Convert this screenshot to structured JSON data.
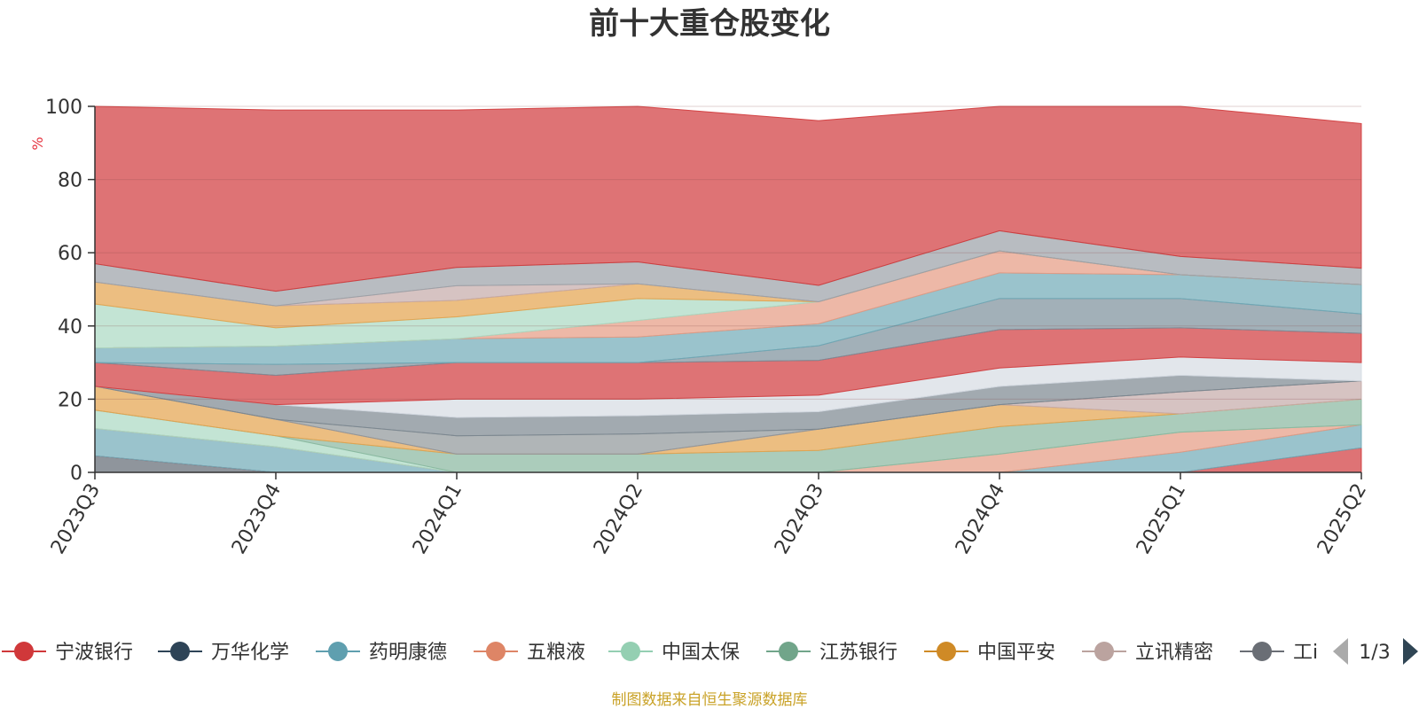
{
  "title": "前十大重仓股变化",
  "source": "制图数据来自恒生聚源数据库",
  "legend_page": "1/3",
  "chart_data": {
    "type": "area",
    "stacked": true,
    "unit": "%",
    "ylim": [
      0,
      100
    ],
    "yticks": [
      "0",
      "20",
      "40",
      "60",
      "80",
      "100"
    ],
    "grid": true,
    "categories": [
      "2023Q3",
      "2023Q4",
      "2024Q1",
      "2024Q2",
      "2024Q3",
      "2024Q4",
      "2025Q1",
      "2025Q2"
    ],
    "series_visible_in_legend": [
      "宁波银行",
      "万华化学",
      "药明康德",
      "五粮液",
      "中国太保",
      "江苏银行",
      "中国平安",
      "立讯精密",
      "工商银行"
    ],
    "series": [
      {
        "name": "",
        "color": "#5f6872",
        "values": [
          4.5,
          0,
          0,
          0,
          0,
          0,
          0,
          0
        ]
      },
      {
        "name": "宁波银行",
        "color": "#d0383a",
        "values": [
          0,
          0,
          0,
          0,
          0,
          0,
          0,
          6.7
        ]
      },
      {
        "name": "药明康德",
        "color": "#6fa9b6",
        "values": [
          7.5,
          7,
          0,
          0,
          0,
          0,
          5.5,
          6.3
        ]
      },
      {
        "name": "五粮液",
        "color": "#e69a82",
        "values": [
          0,
          0,
          0,
          0,
          0,
          5,
          5.5,
          0
        ]
      },
      {
        "name": "中国太保",
        "color": "#a9d8c2",
        "values": [
          5,
          3,
          0,
          0,
          0,
          0,
          0,
          0
        ]
      },
      {
        "name": "江苏银行",
        "color": "#88b79e",
        "values": [
          0,
          0,
          5,
          5,
          6,
          7.5,
          5,
          7
        ]
      },
      {
        "name": "中国平安",
        "color": "#e4a24c",
        "values": [
          6.5,
          4.5,
          0,
          0,
          5.8,
          6,
          0,
          0
        ]
      },
      {
        "name": "立讯精密",
        "color": "#c4aaa8",
        "values": [
          0,
          0,
          0,
          0,
          0,
          0,
          6,
          5
        ]
      },
      {
        "name": "",
        "color": "#8f9599",
        "values": [
          0,
          0,
          5,
          5.5,
          0,
          0,
          0,
          0
        ]
      },
      {
        "name": "工商银行",
        "color": "#7a868f",
        "values": [
          0,
          4,
          5,
          5,
          4.8,
          5,
          4.5,
          0
        ]
      },
      {
        "name": "",
        "color": "#d6dce3",
        "values": [
          0,
          0,
          5,
          4.5,
          4.5,
          5,
          5,
          5
        ]
      },
      {
        "name": "",
        "color": "#d0383a",
        "values": [
          6.5,
          8,
          10,
          10,
          9.5,
          10.5,
          8,
          8
        ]
      },
      {
        "name": "",
        "color": "#7a8e9a",
        "values": [
          0,
          3,
          0,
          0,
          4,
          8.5,
          8,
          5.3
        ]
      },
      {
        "name": "",
        "color": "#6fa9b6",
        "values": [
          4,
          5,
          6.5,
          7,
          6,
          7,
          6.5,
          8
        ]
      },
      {
        "name": "",
        "color": "#e69a82",
        "values": [
          0,
          0,
          0,
          4.5,
          6,
          6,
          0,
          0
        ]
      },
      {
        "name": "",
        "color": "#a9d8c2",
        "values": [
          12,
          5,
          6,
          6,
          0,
          0,
          0,
          0
        ]
      },
      {
        "name": "",
        "color": "#e4a24c",
        "values": [
          6,
          6,
          4.5,
          4,
          0,
          0,
          0,
          0
        ]
      },
      {
        "name": "",
        "color": "#c4aaa8",
        "values": [
          0,
          0,
          4,
          0,
          0,
          0,
          0,
          0
        ]
      },
      {
        "name": "",
        "color": "#9aa0a6",
        "values": [
          5,
          4,
          5,
          6,
          4.5,
          5.5,
          5,
          4.5
        ]
      },
      {
        "name": "",
        "color": "#d0383a",
        "values": [
          43,
          49.5,
          43,
          42.5,
          45,
          34,
          41,
          39.5
        ]
      }
    ]
  },
  "legend": [
    {
      "label": "宁波银行",
      "color": "#d0383a"
    },
    {
      "label": "万华化学",
      "color": "#2e4457"
    },
    {
      "label": "药明康德",
      "color": "#5f9faf"
    },
    {
      "label": "五粮液",
      "color": "#de8566"
    },
    {
      "label": "中国太保",
      "color": "#94cfb2"
    },
    {
      "label": "江苏银行",
      "color": "#71a58a"
    },
    {
      "label": "中国平安",
      "color": "#cf8a26"
    },
    {
      "label": "立讯精密",
      "color": "#bba39f"
    },
    {
      "label": "工i",
      "color": "#6a6e75"
    }
  ]
}
